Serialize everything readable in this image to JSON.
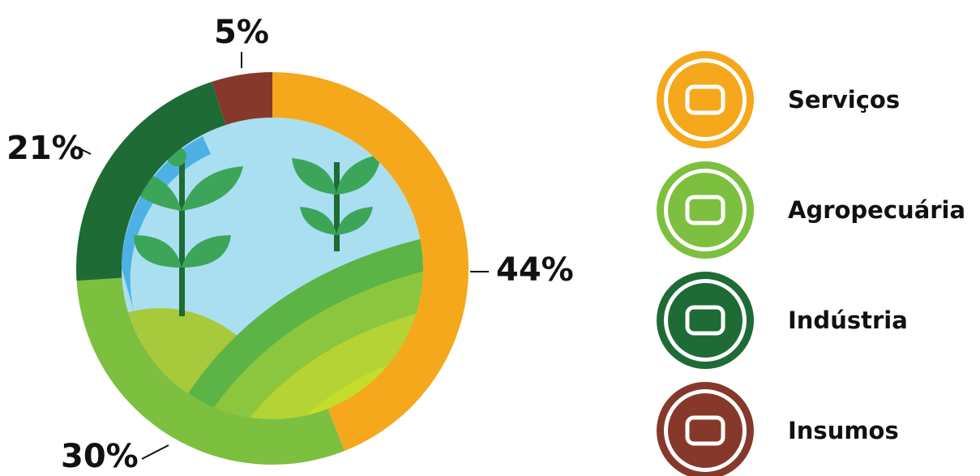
{
  "chart_data": {
    "type": "donut",
    "categories": [
      "Serviços",
      "Agropecuária",
      "Indústria",
      "Insumos"
    ],
    "values": [
      44,
      30,
      21,
      5
    ],
    "value_labels": [
      "44%",
      "30%",
      "21%",
      "5%"
    ],
    "colors": [
      "#f5a81c",
      "#7dbf3f",
      "#1e6b35",
      "#86392a"
    ]
  }
}
